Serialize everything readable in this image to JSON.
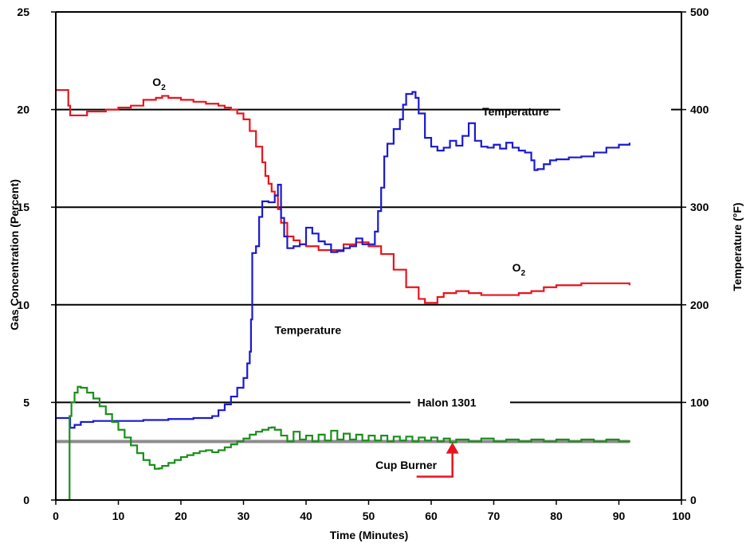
{
  "chart_data": {
    "type": "line",
    "xlabel": "Time (Minutes)",
    "ylabel_left": "Gas Concentration (Percent)",
    "ylabel_right": "Temperature (°F)",
    "xlim": [
      0,
      100
    ],
    "ylim_left": [
      0,
      25
    ],
    "ylim_right": [
      0,
      500
    ],
    "xticks": [
      0,
      10,
      20,
      30,
      40,
      50,
      60,
      70,
      80,
      90,
      100
    ],
    "yticks_left": [
      0,
      5,
      10,
      15,
      20,
      25
    ],
    "yticks_right": [
      0,
      100,
      200,
      300,
      400,
      500
    ],
    "grid": "horizontal",
    "reference_line": {
      "name": "Cup Burner",
      "y": 3.0,
      "color": "#8c8c8c"
    },
    "series": [
      {
        "name": "O2",
        "axis": "left",
        "color": "#e8141e",
        "points": [
          [
            0,
            21.0
          ],
          [
            1.8,
            21.0
          ],
          [
            2.0,
            20.2
          ],
          [
            2.3,
            19.7
          ],
          [
            3,
            19.7
          ],
          [
            5,
            19.9
          ],
          [
            8,
            20.0
          ],
          [
            10,
            20.1
          ],
          [
            12,
            20.2
          ],
          [
            14,
            20.5
          ],
          [
            16,
            20.6
          ],
          [
            17,
            20.7
          ],
          [
            18,
            20.6
          ],
          [
            20,
            20.5
          ],
          [
            22,
            20.4
          ],
          [
            24,
            20.3
          ],
          [
            26,
            20.2
          ],
          [
            27,
            20.1
          ],
          [
            28,
            20.0
          ],
          [
            29,
            19.8
          ],
          [
            30,
            19.5
          ],
          [
            31,
            18.9
          ],
          [
            32,
            18.1
          ],
          [
            33,
            17.3
          ],
          [
            33.5,
            16.6
          ],
          [
            34,
            16.2
          ],
          [
            34.5,
            15.8
          ],
          [
            35,
            15.6
          ],
          [
            35.5,
            14.9
          ],
          [
            36,
            14.2
          ],
          [
            37,
            13.5
          ],
          [
            38,
            13.3
          ],
          [
            39,
            13.1
          ],
          [
            40,
            13.0
          ],
          [
            42,
            12.8
          ],
          [
            44,
            12.8
          ],
          [
            46,
            13.1
          ],
          [
            48,
            13.2
          ],
          [
            50,
            13.0
          ],
          [
            52,
            12.6
          ],
          [
            54,
            11.8
          ],
          [
            56,
            10.9
          ],
          [
            58,
            10.3
          ],
          [
            59,
            10.1
          ],
          [
            60,
            10.1
          ],
          [
            61,
            10.4
          ],
          [
            62,
            10.6
          ],
          [
            64,
            10.7
          ],
          [
            66,
            10.6
          ],
          [
            68,
            10.5
          ],
          [
            70,
            10.5
          ],
          [
            72,
            10.5
          ],
          [
            74,
            10.6
          ],
          [
            76,
            10.7
          ],
          [
            78,
            10.9
          ],
          [
            80,
            11.0
          ],
          [
            82,
            11.0
          ],
          [
            84,
            11.1
          ],
          [
            86,
            11.1
          ],
          [
            88,
            11.1
          ],
          [
            90,
            11.1
          ],
          [
            91.7,
            11.0
          ]
        ]
      },
      {
        "name": "Temperature",
        "axis": "right",
        "color": "#1a1ad0",
        "points": [
          [
            0,
            84
          ],
          [
            2,
            84
          ],
          [
            2.3,
            74
          ],
          [
            3,
            77
          ],
          [
            4,
            80
          ],
          [
            6,
            81
          ],
          [
            10,
            81
          ],
          [
            14,
            82
          ],
          [
            18,
            83
          ],
          [
            22,
            84
          ],
          [
            25,
            86
          ],
          [
            26,
            92
          ],
          [
            27,
            98
          ],
          [
            28,
            106
          ],
          [
            29,
            115
          ],
          [
            30,
            125
          ],
          [
            30.6,
            140
          ],
          [
            31,
            152
          ],
          [
            31.2,
            185
          ],
          [
            31.4,
            253
          ],
          [
            32,
            260
          ],
          [
            32.5,
            290
          ],
          [
            33,
            306
          ],
          [
            34,
            305
          ],
          [
            35,
            312
          ],
          [
            35.5,
            323
          ],
          [
            36,
            289
          ],
          [
            36.5,
            270
          ],
          [
            37,
            258
          ],
          [
            38,
            260
          ],
          [
            39,
            262
          ],
          [
            40,
            279
          ],
          [
            41,
            273
          ],
          [
            42,
            265
          ],
          [
            43,
            262
          ],
          [
            44,
            254
          ],
          [
            45,
            255
          ],
          [
            46,
            258
          ],
          [
            47,
            260
          ],
          [
            48,
            268
          ],
          [
            49,
            262
          ],
          [
            50,
            262
          ],
          [
            51,
            275
          ],
          [
            51.5,
            296
          ],
          [
            52,
            320
          ],
          [
            52.5,
            352
          ],
          [
            53,
            365
          ],
          [
            54,
            380
          ],
          [
            55,
            390
          ],
          [
            55.5,
            405
          ],
          [
            56,
            416
          ],
          [
            57,
            418
          ],
          [
            57.5,
            412
          ],
          [
            58,
            396
          ],
          [
            59,
            371
          ],
          [
            60,
            362
          ],
          [
            61,
            358
          ],
          [
            62,
            361
          ],
          [
            63,
            368
          ],
          [
            64,
            363
          ],
          [
            65,
            373
          ],
          [
            66,
            386
          ],
          [
            67,
            368
          ],
          [
            68,
            362
          ],
          [
            69,
            361
          ],
          [
            70,
            364
          ],
          [
            71,
            360
          ],
          [
            72,
            366
          ],
          [
            73,
            361
          ],
          [
            74,
            358
          ],
          [
            75,
            356
          ],
          [
            76,
            348
          ],
          [
            76.5,
            338
          ],
          [
            77,
            339
          ],
          [
            78,
            344
          ],
          [
            79,
            348
          ],
          [
            80,
            349
          ],
          [
            82,
            351
          ],
          [
            84,
            352
          ],
          [
            86,
            356
          ],
          [
            88,
            361
          ],
          [
            90,
            364
          ],
          [
            91.7,
            366
          ]
        ]
      },
      {
        "name": "Halon 1301",
        "axis": "left",
        "color": "#1b8f1b",
        "points": [
          [
            0,
            0
          ],
          [
            2,
            0
          ],
          [
            2.2,
            4.3
          ],
          [
            2.5,
            5.0
          ],
          [
            3,
            5.5
          ],
          [
            3.5,
            5.8
          ],
          [
            4,
            5.75
          ],
          [
            5,
            5.5
          ],
          [
            6,
            5.2
          ],
          [
            7,
            4.8
          ],
          [
            8,
            4.4
          ],
          [
            9,
            4.0
          ],
          [
            10,
            3.6
          ],
          [
            11,
            3.2
          ],
          [
            12,
            2.8
          ],
          [
            13,
            2.4
          ],
          [
            14,
            2.05
          ],
          [
            15,
            1.8
          ],
          [
            15.8,
            1.6
          ],
          [
            16.5,
            1.62
          ],
          [
            17,
            1.75
          ],
          [
            18,
            1.9
          ],
          [
            19,
            2.05
          ],
          [
            20,
            2.2
          ],
          [
            21,
            2.3
          ],
          [
            22,
            2.4
          ],
          [
            23,
            2.5
          ],
          [
            24,
            2.55
          ],
          [
            25,
            2.45
          ],
          [
            26,
            2.55
          ],
          [
            27,
            2.7
          ],
          [
            28,
            2.85
          ],
          [
            29,
            3.0
          ],
          [
            30,
            3.15
          ],
          [
            31,
            3.35
          ],
          [
            32,
            3.5
          ],
          [
            33,
            3.6
          ],
          [
            34,
            3.7
          ],
          [
            34.5,
            3.72
          ],
          [
            35,
            3.6
          ],
          [
            36,
            3.3
          ],
          [
            37,
            3.0
          ],
          [
            38,
            3.5
          ],
          [
            39,
            3.1
          ],
          [
            40,
            3.3
          ],
          [
            41,
            3.0
          ],
          [
            42,
            3.35
          ],
          [
            43,
            3.05
          ],
          [
            44,
            3.55
          ],
          [
            45,
            3.1
          ],
          [
            46,
            3.4
          ],
          [
            47,
            3.1
          ],
          [
            48,
            3.35
          ],
          [
            49,
            3.05
          ],
          [
            50,
            3.3
          ],
          [
            51,
            3.05
          ],
          [
            52,
            3.3
          ],
          [
            53,
            3.0
          ],
          [
            54,
            3.25
          ],
          [
            55,
            3.05
          ],
          [
            56,
            3.25
          ],
          [
            57,
            3.0
          ],
          [
            58,
            3.2
          ],
          [
            59,
            3.05
          ],
          [
            60,
            3.2
          ],
          [
            61,
            3.0
          ],
          [
            62,
            3.15
          ],
          [
            63,
            2.95
          ],
          [
            64,
            3.1
          ],
          [
            66,
            3.0
          ],
          [
            68,
            3.15
          ],
          [
            70,
            3.0
          ],
          [
            72,
            3.1
          ],
          [
            74,
            3.0
          ],
          [
            76,
            3.1
          ],
          [
            78,
            3.0
          ],
          [
            80,
            3.1
          ],
          [
            82,
            3.0
          ],
          [
            84,
            3.1
          ],
          [
            86,
            3.0
          ],
          [
            88,
            3.1
          ],
          [
            90,
            3.0
          ],
          [
            91.7,
            3.05
          ]
        ]
      }
    ],
    "annotations": [
      {
        "label": "O",
        "sub": "2",
        "data_x": 16.5,
        "data_y": 21.2
      },
      {
        "label": "O",
        "sub": "2",
        "data_x": 74.0,
        "data_y": 11.7
      },
      {
        "label": "Temperature",
        "data_x": 73.5,
        "data_y": 19.7
      },
      {
        "label": "Temperature",
        "data_x": 40.3,
        "data_y": 8.5
      },
      {
        "label": "Halon 1301",
        "data_x": 62.5,
        "data_y": 4.8
      },
      {
        "label": "Cup Burner",
        "data_x": 56.0,
        "data_y": 1.6
      }
    ]
  }
}
